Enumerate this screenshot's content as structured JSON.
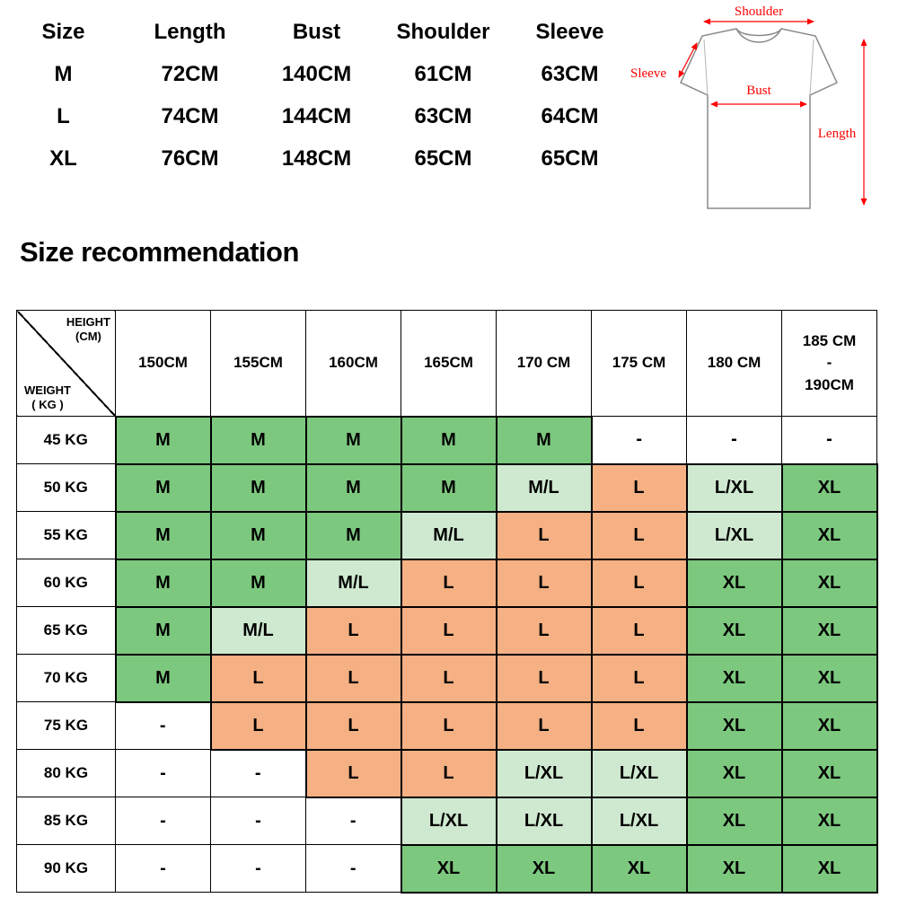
{
  "heading": "Size recommendation",
  "measurement_table": {
    "headers": [
      "Size",
      "Length",
      "Bust",
      "Shoulder",
      "Sleeve"
    ],
    "rows": [
      [
        "M",
        "72CM",
        "140CM",
        "61CM",
        "63CM"
      ],
      [
        "L",
        "74CM",
        "144CM",
        "63CM",
        "64CM"
      ],
      [
        "XL",
        "76CM",
        "148CM",
        "65CM",
        "65CM"
      ]
    ]
  },
  "diagram": {
    "shoulder_label": "Shoulder",
    "sleeve_label": "Sleeve",
    "bust_label": "Bust",
    "length_label": "Length",
    "label_color": "#ff0000"
  },
  "size_table": {
    "corner": {
      "top_line1": "HEIGHT",
      "top_line2": "(CM)",
      "bottom_line1": "WEIGHT",
      "bottom_line2": "( KG )"
    },
    "height_headers": [
      [
        "150CM"
      ],
      [
        "155CM"
      ],
      [
        "160CM"
      ],
      [
        "165CM"
      ],
      [
        "170 CM"
      ],
      [
        "175 CM"
      ],
      [
        "180 CM"
      ],
      [
        "185 CM",
        "-",
        "190CM"
      ]
    ],
    "colors": {
      "g": "#7dc87f",
      "lg": "#cfe9d0",
      "o": "#f5b183",
      "w": "#ffffff"
    },
    "rows": [
      {
        "weight": "45 KG",
        "cells": [
          {
            "v": "M",
            "c": "g"
          },
          {
            "v": "M",
            "c": "g"
          },
          {
            "v": "M",
            "c": "g"
          },
          {
            "v": "M",
            "c": "g"
          },
          {
            "v": "M",
            "c": "g"
          },
          {
            "v": "-",
            "c": "w"
          },
          {
            "v": "-",
            "c": "w"
          },
          {
            "v": "-",
            "c": "w"
          }
        ]
      },
      {
        "weight": "50 KG",
        "cells": [
          {
            "v": "M",
            "c": "g"
          },
          {
            "v": "M",
            "c": "g"
          },
          {
            "v": "M",
            "c": "g"
          },
          {
            "v": "M",
            "c": "g"
          },
          {
            "v": "M/L",
            "c": "lg"
          },
          {
            "v": "L",
            "c": "o"
          },
          {
            "v": "L/XL",
            "c": "lg"
          },
          {
            "v": "XL",
            "c": "g"
          }
        ]
      },
      {
        "weight": "55 KG",
        "cells": [
          {
            "v": "M",
            "c": "g"
          },
          {
            "v": "M",
            "c": "g"
          },
          {
            "v": "M",
            "c": "g"
          },
          {
            "v": "M/L",
            "c": "lg"
          },
          {
            "v": "L",
            "c": "o"
          },
          {
            "v": "L",
            "c": "o"
          },
          {
            "v": "L/XL",
            "c": "lg"
          },
          {
            "v": "XL",
            "c": "g"
          }
        ]
      },
      {
        "weight": "60 KG",
        "cells": [
          {
            "v": "M",
            "c": "g"
          },
          {
            "v": "M",
            "c": "g"
          },
          {
            "v": "M/L",
            "c": "lg"
          },
          {
            "v": "L",
            "c": "o"
          },
          {
            "v": "L",
            "c": "o"
          },
          {
            "v": "L",
            "c": "o"
          },
          {
            "v": "XL",
            "c": "g"
          },
          {
            "v": "XL",
            "c": "g"
          }
        ]
      },
      {
        "weight": "65 KG",
        "cells": [
          {
            "v": "M",
            "c": "g"
          },
          {
            "v": "M/L",
            "c": "lg"
          },
          {
            "v": "L",
            "c": "o"
          },
          {
            "v": "L",
            "c": "o"
          },
          {
            "v": "L",
            "c": "o"
          },
          {
            "v": "L",
            "c": "o"
          },
          {
            "v": "XL",
            "c": "g"
          },
          {
            "v": "XL",
            "c": "g"
          }
        ]
      },
      {
        "weight": "70 KG",
        "cells": [
          {
            "v": "M",
            "c": "g"
          },
          {
            "v": "L",
            "c": "o"
          },
          {
            "v": "L",
            "c": "o"
          },
          {
            "v": "L",
            "c": "o"
          },
          {
            "v": "L",
            "c": "o"
          },
          {
            "v": "L",
            "c": "o"
          },
          {
            "v": "XL",
            "c": "g"
          },
          {
            "v": "XL",
            "c": "g"
          }
        ]
      },
      {
        "weight": "75 KG",
        "cells": [
          {
            "v": "-",
            "c": "w"
          },
          {
            "v": "L",
            "c": "o"
          },
          {
            "v": "L",
            "c": "o"
          },
          {
            "v": "L",
            "c": "o"
          },
          {
            "v": "L",
            "c": "o"
          },
          {
            "v": "L",
            "c": "o"
          },
          {
            "v": "XL",
            "c": "g"
          },
          {
            "v": "XL",
            "c": "g"
          }
        ]
      },
      {
        "weight": "80 KG",
        "cells": [
          {
            "v": "-",
            "c": "w"
          },
          {
            "v": "-",
            "c": "w"
          },
          {
            "v": "L",
            "c": "o"
          },
          {
            "v": "L",
            "c": "o"
          },
          {
            "v": "L/XL",
            "c": "lg"
          },
          {
            "v": "L/XL",
            "c": "lg"
          },
          {
            "v": "XL",
            "c": "g"
          },
          {
            "v": "XL",
            "c": "g"
          }
        ]
      },
      {
        "weight": "85 KG",
        "cells": [
          {
            "v": "-",
            "c": "w"
          },
          {
            "v": "-",
            "c": "w"
          },
          {
            "v": "-",
            "c": "w"
          },
          {
            "v": "L/XL",
            "c": "lg"
          },
          {
            "v": "L/XL",
            "c": "lg"
          },
          {
            "v": "L/XL",
            "c": "lg"
          },
          {
            "v": "XL",
            "c": "g"
          },
          {
            "v": "XL",
            "c": "g"
          }
        ]
      },
      {
        "weight": "90 KG",
        "cells": [
          {
            "v": "-",
            "c": "w"
          },
          {
            "v": "-",
            "c": "w"
          },
          {
            "v": "-",
            "c": "w"
          },
          {
            "v": "XL",
            "c": "g"
          },
          {
            "v": "XL",
            "c": "g"
          },
          {
            "v": "XL",
            "c": "g"
          },
          {
            "v": "XL",
            "c": "g"
          },
          {
            "v": "XL",
            "c": "g"
          }
        ]
      }
    ]
  }
}
